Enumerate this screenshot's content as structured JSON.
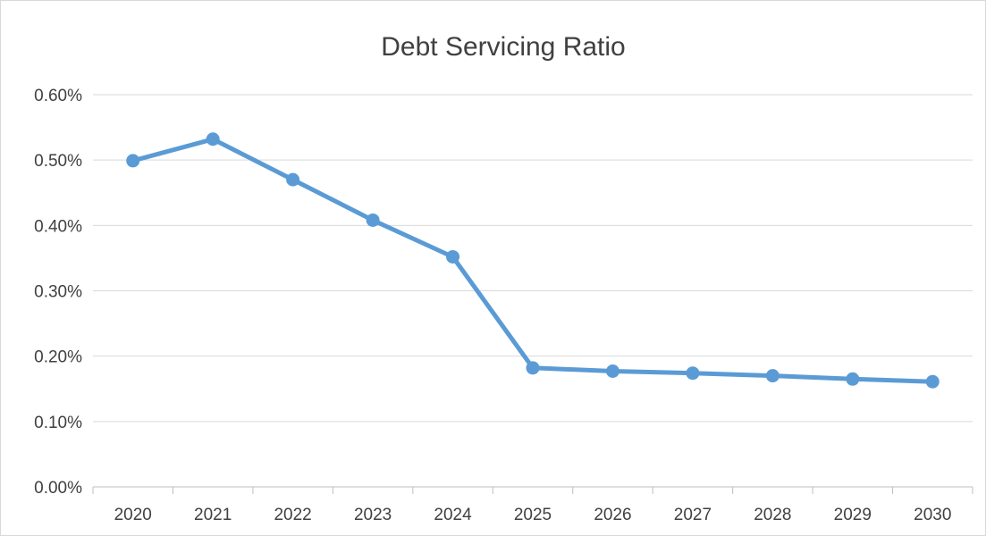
{
  "chart_data": {
    "type": "line",
    "title": "Debt Servicing Ratio",
    "xlabel": "",
    "ylabel": "",
    "categories": [
      "2020",
      "2021",
      "2022",
      "2023",
      "2024",
      "2025",
      "2026",
      "2027",
      "2028",
      "2029",
      "2030"
    ],
    "series": [
      {
        "values": [
          0.00499,
          0.00532,
          0.0047,
          0.00408,
          0.00352,
          0.00182,
          0.00177,
          0.00174,
          0.0017,
          0.00165,
          0.00161
        ],
        "color": "#5b9bd5"
      }
    ],
    "ylim": [
      0,
      0.006
    ],
    "yticks": [
      0,
      0.001,
      0.002,
      0.003,
      0.004,
      0.005,
      0.006
    ],
    "ytick_labels": [
      "0.00%",
      "0.10%",
      "0.20%",
      "0.30%",
      "0.40%",
      "0.50%",
      "0.60%"
    ],
    "grid": true,
    "legend": "none"
  }
}
